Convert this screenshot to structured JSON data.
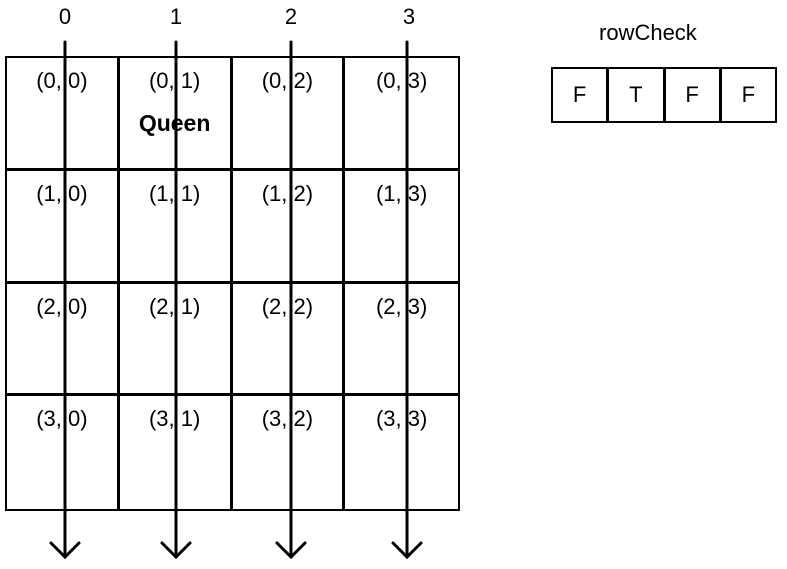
{
  "column_labels": [
    "0",
    "1",
    "2",
    "3"
  ],
  "board": {
    "rows": [
      [
        {
          "coord": "(0, 0)",
          "piece": ""
        },
        {
          "coord": "(0, 1)",
          "piece": "Queen"
        },
        {
          "coord": "(0, 2)",
          "piece": ""
        },
        {
          "coord": "(0, 3)",
          "piece": ""
        }
      ],
      [
        {
          "coord": "(1, 0)",
          "piece": ""
        },
        {
          "coord": "(1, 1)",
          "piece": ""
        },
        {
          "coord": "(1, 2)",
          "piece": ""
        },
        {
          "coord": "(1, 3)",
          "piece": ""
        }
      ],
      [
        {
          "coord": "(2, 0)",
          "piece": ""
        },
        {
          "coord": "(2, 1)",
          "piece": ""
        },
        {
          "coord": "(2, 2)",
          "piece": ""
        },
        {
          "coord": "(2, 3)",
          "piece": ""
        }
      ],
      [
        {
          "coord": "(3, 0)",
          "piece": ""
        },
        {
          "coord": "(3, 1)",
          "piece": ""
        },
        {
          "coord": "(3, 2)",
          "piece": ""
        },
        {
          "coord": "(3, 3)",
          "piece": ""
        }
      ]
    ]
  },
  "row_check": {
    "title": "rowCheck",
    "values": [
      "F",
      "T",
      "F",
      "F"
    ]
  }
}
